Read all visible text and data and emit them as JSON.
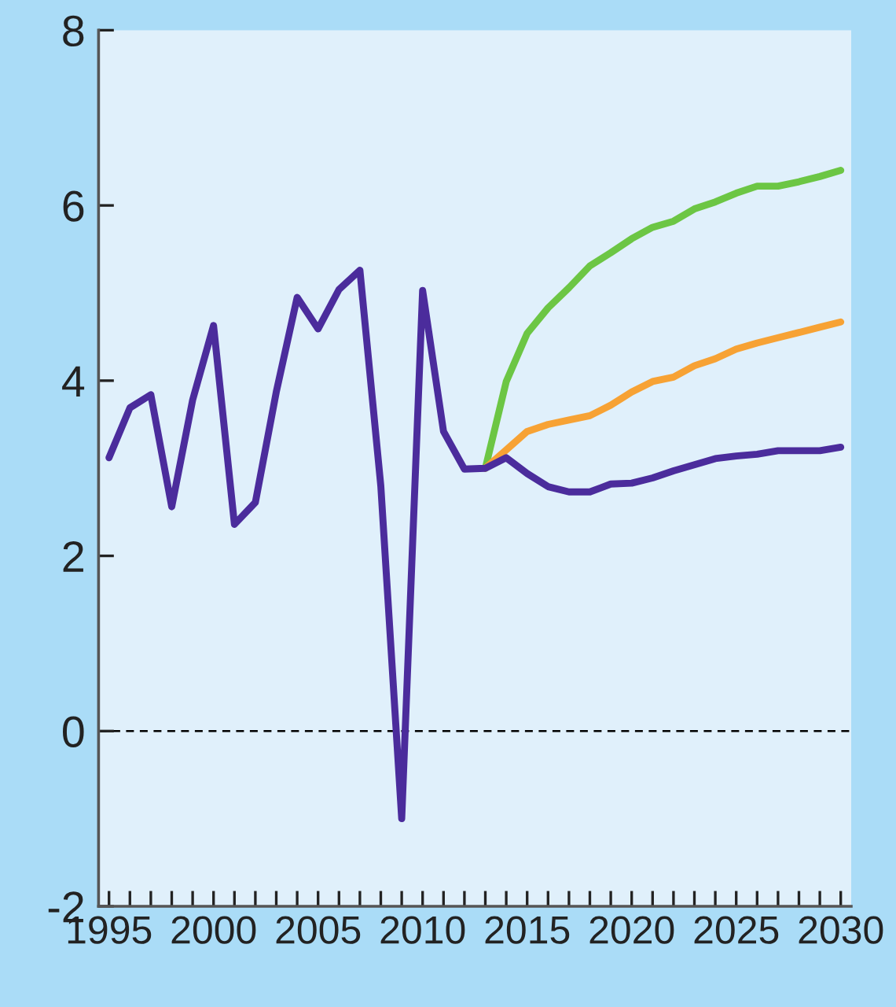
{
  "chart_data": {
    "type": "line",
    "x": [
      1995,
      1996,
      1997,
      1998,
      1999,
      2000,
      2001,
      2002,
      2003,
      2004,
      2005,
      2006,
      2007,
      2008,
      2009,
      2010,
      2011,
      2012,
      2013,
      2014,
      2015,
      2016,
      2017,
      2018,
      2019,
      2020,
      2021,
      2022,
      2023,
      2024,
      2025,
      2026,
      2027,
      2028,
      2029,
      2030
    ],
    "series": [
      {
        "color": "#6cc644",
        "x": [
          2013,
          2014,
          2015,
          2016,
          2017,
          2018,
          2019,
          2020,
          2021,
          2022,
          2023,
          2024,
          2025,
          2026,
          2027,
          2028,
          2029,
          2030
        ],
        "values": [
          3.0,
          3.99,
          4.54,
          4.83,
          5.06,
          5.31,
          5.46,
          5.62,
          5.75,
          5.82,
          5.96,
          6.04,
          6.14,
          6.22,
          6.22,
          6.27,
          6.33,
          6.4
        ]
      },
      {
        "color": "#f7a234",
        "x": [
          2013,
          2014,
          2015,
          2016,
          2017,
          2018,
          2019,
          2020,
          2021,
          2022,
          2023,
          2024,
          2025,
          2026,
          2027,
          2028,
          2029,
          2030
        ],
        "values": [
          3.0,
          3.21,
          3.42,
          3.5,
          3.55,
          3.6,
          3.72,
          3.87,
          3.99,
          4.04,
          4.17,
          4.25,
          4.36,
          4.43,
          4.49,
          4.55,
          4.61,
          4.67
        ]
      },
      {
        "color": "#4b2c9c",
        "values": [
          3.12,
          3.69,
          3.84,
          2.56,
          3.78,
          4.63,
          2.36,
          2.61,
          3.87,
          4.95,
          4.59,
          5.04,
          5.26,
          2.8,
          -1.0,
          5.03,
          3.42,
          2.99,
          3.0,
          3.12,
          2.94,
          2.79,
          2.73,
          2.73,
          2.82,
          2.83,
          2.89,
          2.97,
          3.04,
          3.11,
          3.14,
          3.16,
          3.2,
          3.2,
          3.2,
          3.24
        ]
      }
    ],
    "xlim": [
      1994.5,
      2030.5
    ],
    "xticks": [
      1995,
      {
        "value": 1996,
        "label": null
      },
      {
        "value": 1997,
        "label": null
      },
      {
        "value": 1998,
        "label": null
      },
      {
        "value": 1999,
        "label": null
      },
      2000,
      {
        "value": 2001,
        "label": null
      },
      {
        "value": 2002,
        "label": null
      },
      {
        "value": 2003,
        "label": null
      },
      {
        "value": 2004,
        "label": null
      },
      2005,
      {
        "value": 2006,
        "label": null
      },
      {
        "value": 2007,
        "label": null
      },
      {
        "value": 2008,
        "label": null
      },
      {
        "value": 2009,
        "label": null
      },
      2010,
      {
        "value": 2011,
        "label": null
      },
      {
        "value": 2012,
        "label": null
      },
      {
        "value": 2013,
        "label": null
      },
      {
        "value": 2014,
        "label": null
      },
      2015,
      {
        "value": 2016,
        "label": null
      },
      {
        "value": 2017,
        "label": null
      },
      {
        "value": 2018,
        "label": null
      },
      {
        "value": 2019,
        "label": null
      },
      2020,
      {
        "value": 2021,
        "label": null
      },
      {
        "value": 2022,
        "label": null
      },
      {
        "value": 2023,
        "label": null
      },
      {
        "value": 2024,
        "label": null
      },
      2025,
      {
        "value": 2026,
        "label": null
      },
      {
        "value": 2027,
        "label": null
      },
      {
        "value": 2028,
        "label": null
      },
      {
        "value": 2029,
        "label": null
      },
      2030
    ],
    "ylim": [
      -2,
      8
    ],
    "yticks": [
      -2,
      0,
      2,
      4,
      6,
      8
    ],
    "ref_lines": [
      {
        "axis": "y",
        "value": 0,
        "color": "#000000",
        "line_style": "dashed"
      }
    ],
    "grid": false,
    "marker": "none",
    "line_style": "solid"
  }
}
